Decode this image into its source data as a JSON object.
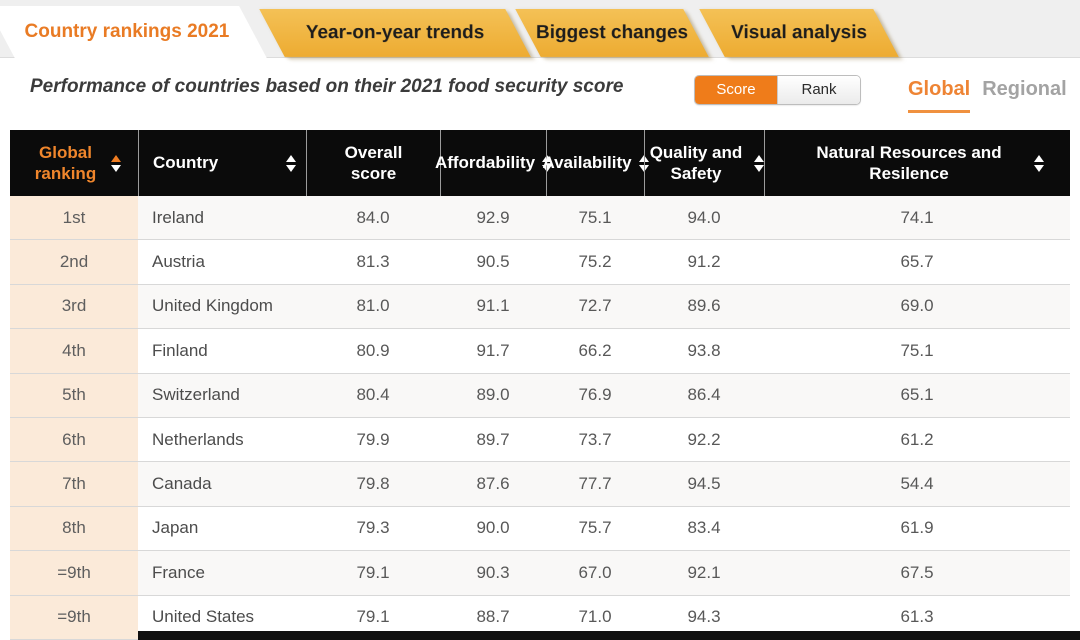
{
  "tabs": {
    "items": [
      {
        "label": "Country rankings 2021",
        "active": true
      },
      {
        "label": "Year-on-year trends",
        "active": false
      },
      {
        "label": "Biggest changes",
        "active": false
      },
      {
        "label": "Visual analysis",
        "active": false
      }
    ]
  },
  "subtitle": "Performance of countries based on their 2021 food security score",
  "view_toggle": {
    "options": [
      {
        "label": "Score",
        "selected": true
      },
      {
        "label": "Rank",
        "selected": false
      }
    ]
  },
  "scope_switch": {
    "options": [
      {
        "label": "Global",
        "selected": true
      },
      {
        "label": "Regional",
        "selected": false
      }
    ]
  },
  "colors": {
    "accent_orange": "#ee7d1f",
    "tab_amber": "#efb442",
    "header_black": "#0b0b0b",
    "rank_column_peach": "#fbead9",
    "selected_toggle_orange": "#ef7c1a"
  },
  "table": {
    "columns": [
      {
        "label": "Global ranking",
        "sort": "active"
      },
      {
        "label": "Country",
        "sort": "normal"
      },
      {
        "label": "Overall score",
        "sort": "none"
      },
      {
        "label": "Affordability",
        "sort": "normal"
      },
      {
        "label": "Availability",
        "sort": "normal"
      },
      {
        "label": "Quality and Safety",
        "sort": "normal"
      },
      {
        "label": "Natural Resources and Resilence",
        "sort": "normal"
      }
    ],
    "rows": [
      {
        "rank": "1st",
        "country": "Ireland",
        "scores": [
          "84.0",
          "92.9",
          "75.1",
          "94.0",
          "74.1"
        ]
      },
      {
        "rank": "2nd",
        "country": "Austria",
        "scores": [
          "81.3",
          "90.5",
          "75.2",
          "91.2",
          "65.7"
        ]
      },
      {
        "rank": "3rd",
        "country": "United Kingdom",
        "scores": [
          "81.0",
          "91.1",
          "72.7",
          "89.6",
          "69.0"
        ]
      },
      {
        "rank": "4th",
        "country": "Finland",
        "scores": [
          "80.9",
          "91.7",
          "66.2",
          "93.8",
          "75.1"
        ]
      },
      {
        "rank": "5th",
        "country": "Switzerland",
        "scores": [
          "80.4",
          "89.0",
          "76.9",
          "86.4",
          "65.1"
        ]
      },
      {
        "rank": "6th",
        "country": "Netherlands",
        "scores": [
          "79.9",
          "89.7",
          "73.7",
          "92.2",
          "61.2"
        ]
      },
      {
        "rank": "7th",
        "country": "Canada",
        "scores": [
          "79.8",
          "87.6",
          "77.7",
          "94.5",
          "54.4"
        ]
      },
      {
        "rank": "8th",
        "country": "Japan",
        "scores": [
          "79.3",
          "90.0",
          "75.7",
          "83.4",
          "61.9"
        ]
      },
      {
        "rank": "=9th",
        "country": "France",
        "scores": [
          "79.1",
          "90.3",
          "67.0",
          "92.1",
          "67.5"
        ]
      },
      {
        "rank": "=9th",
        "country": "United States",
        "scores": [
          "79.1",
          "88.7",
          "71.0",
          "94.3",
          "61.3"
        ]
      }
    ]
  }
}
